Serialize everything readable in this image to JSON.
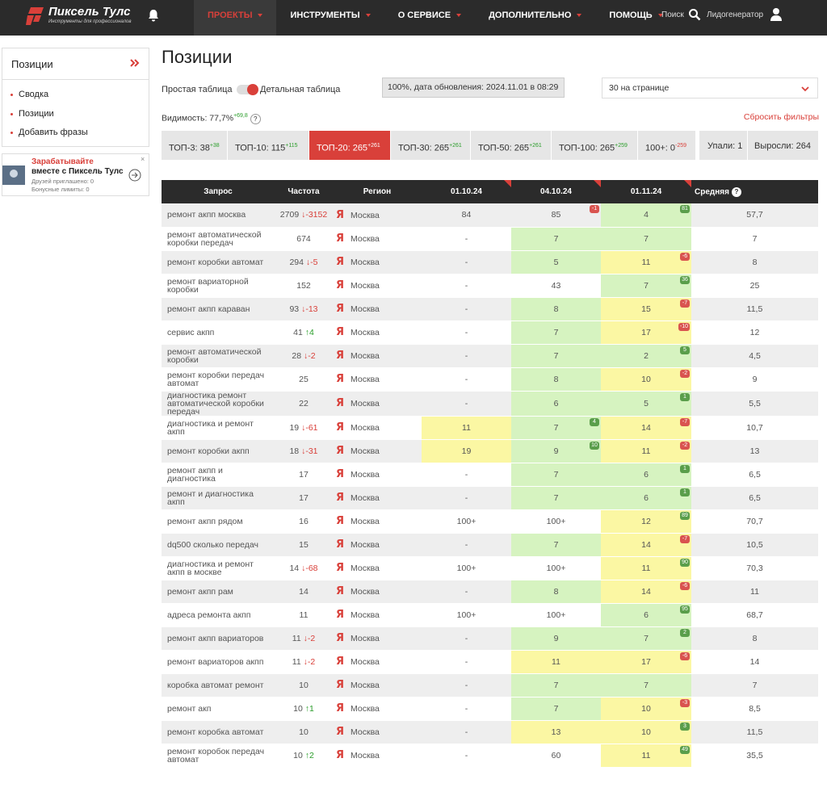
{
  "header": {
    "logo_title": "Пиксель Тулс",
    "logo_subtitle": "Инструменты для профессионалов",
    "nav": [
      "ПРОЕКТЫ",
      "ИНСТРУМЕНТЫ",
      "О СЕРВИСЕ",
      "ДОПОЛНИТЕЛЬНО",
      "ПОМОЩЬ"
    ],
    "active_nav": 0,
    "search": "Поиск",
    "user": "Лидогенератор"
  },
  "sidebar": {
    "title": "Позиции",
    "links": [
      "Сводка",
      "Позиции",
      "Добавить фразы"
    ],
    "promo": {
      "title": "Зарабатывайте",
      "subtitle": "вместе с Пиксель Тулс",
      "lines": [
        "Друзей приглашено: 0",
        "Бонусные лимиты: 0"
      ]
    }
  },
  "main": {
    "title": "Позиции",
    "toggle": [
      "Простая таблица",
      "Детальная таблица"
    ],
    "status": "100%, дата обновления: 2024.11.01 в 08:29",
    "per_page": "30 на странице",
    "visibility": "Видимость: 77,7%",
    "visibility_delta": "+69,8",
    "help": "?",
    "reset": "Сбросить фильтры",
    "tabs": [
      {
        "label": "ТОП-3: 38",
        "delta": "+38"
      },
      {
        "label": "ТОП-10: 115",
        "delta": "+115"
      },
      {
        "label": "ТОП-20: 265",
        "delta": "+261"
      },
      {
        "label": "ТОП-30: 265",
        "delta": "+261"
      },
      {
        "label": "ТОП-50: 265",
        "delta": "+261"
      },
      {
        "label": "ТОП-100: 265",
        "delta": "+259"
      },
      {
        "label": "100+: 0",
        "delta": "-259"
      }
    ],
    "active_tab": 2,
    "stats": [
      "Упали: 1",
      "Выросли: 264"
    ]
  },
  "table": {
    "columns": [
      "Запрос",
      "Частота",
      "Регион",
      "01.10.24",
      "04.10.24",
      "01.11.24",
      "Средняя"
    ],
    "engine_icon": "Я",
    "rows": [
      {
        "query": "ремонт акпп москва",
        "freq": "2709",
        "trend": "↓-3152",
        "region": "Москва",
        "cells": [
          {
            "v": "84",
            "bg": "white"
          },
          {
            "v": "85",
            "bg": "white",
            "badge": "-1"
          },
          {
            "v": "4",
            "bg": "green",
            "badge": "81"
          }
        ],
        "avg": "57,7"
      },
      {
        "query": "ремонт автоматической коробки передач",
        "freq": "674",
        "region": "Москва",
        "cells": [
          {
            "v": "-",
            "bg": "white"
          },
          {
            "v": "7",
            "bg": "green"
          },
          {
            "v": "7",
            "bg": "green"
          }
        ],
        "avg": "7"
      },
      {
        "query": "ремонт коробки автомат",
        "freq": "294",
        "trend": "↓-5",
        "region": "Москва",
        "cells": [
          {
            "v": "-",
            "bg": "white"
          },
          {
            "v": "5",
            "bg": "green"
          },
          {
            "v": "11",
            "bg": "yellow",
            "badge": "-6"
          }
        ],
        "avg": "8"
      },
      {
        "query": "ремонт вариаторной коробки",
        "freq": "152",
        "region": "Москва",
        "cells": [
          {
            "v": "-",
            "bg": "white"
          },
          {
            "v": "43",
            "bg": "white"
          },
          {
            "v": "7",
            "bg": "green",
            "badge": "36"
          }
        ],
        "avg": "25"
      },
      {
        "query": "ремонт акпп караван",
        "freq": "93",
        "trend": "↓-13",
        "region": "Москва",
        "cells": [
          {
            "v": "-",
            "bg": "white"
          },
          {
            "v": "8",
            "bg": "green"
          },
          {
            "v": "15",
            "bg": "yellow",
            "badge": "-7"
          }
        ],
        "avg": "11,5"
      },
      {
        "query": "сервис акпп",
        "freq": "41",
        "trend": "↑4",
        "region": "Москва",
        "cells": [
          {
            "v": "-",
            "bg": "white"
          },
          {
            "v": "7",
            "bg": "green"
          },
          {
            "v": "17",
            "bg": "yellow",
            "badge": "-10"
          }
        ],
        "avg": "12"
      },
      {
        "query": "ремонт автоматической коробки",
        "freq": "28",
        "trend": "↓-2",
        "region": "Москва",
        "cells": [
          {
            "v": "-",
            "bg": "white"
          },
          {
            "v": "7",
            "bg": "green"
          },
          {
            "v": "2",
            "bg": "green",
            "badge": "5"
          }
        ],
        "avg": "4,5"
      },
      {
        "query": "ремонт коробки передач автомат",
        "freq": "25",
        "region": "Москва",
        "cells": [
          {
            "v": "-",
            "bg": "white"
          },
          {
            "v": "8",
            "bg": "green"
          },
          {
            "v": "10",
            "bg": "yellow",
            "badge": "-2"
          }
        ],
        "avg": "9"
      },
      {
        "query": "диагностика ремонт автоматической коробки передач",
        "freq": "22",
        "region": "Москва",
        "cells": [
          {
            "v": "-",
            "bg": "white"
          },
          {
            "v": "6",
            "bg": "green"
          },
          {
            "v": "5",
            "bg": "green",
            "badge": "1"
          }
        ],
        "avg": "5,5"
      },
      {
        "query": "диагностика и ремонт акпп",
        "freq": "19",
        "trend": "↓-61",
        "region": "Москва",
        "cells": [
          {
            "v": "11",
            "bg": "yellow"
          },
          {
            "v": "7",
            "bg": "green",
            "badge": "4"
          },
          {
            "v": "14",
            "bg": "yellow",
            "badge": "-7"
          }
        ],
        "avg": "10,7"
      },
      {
        "query": "ремонт коробки акпп",
        "freq": "18",
        "trend": "↓-31",
        "region": "Москва",
        "cells": [
          {
            "v": "19",
            "bg": "yellow"
          },
          {
            "v": "9",
            "bg": "green",
            "badge": "10"
          },
          {
            "v": "11",
            "bg": "yellow",
            "badge": "-2"
          }
        ],
        "avg": "13"
      },
      {
        "query": "ремонт акпп и диагностика",
        "freq": "17",
        "region": "Москва",
        "cells": [
          {
            "v": "-",
            "bg": "white"
          },
          {
            "v": "7",
            "bg": "green"
          },
          {
            "v": "6",
            "bg": "green",
            "badge": "1"
          }
        ],
        "avg": "6,5"
      },
      {
        "query": "ремонт и диагностика акпп",
        "freq": "17",
        "region": "Москва",
        "cells": [
          {
            "v": "-",
            "bg": "white"
          },
          {
            "v": "7",
            "bg": "green"
          },
          {
            "v": "6",
            "bg": "green",
            "badge": "1"
          }
        ],
        "avg": "6,5"
      },
      {
        "query": "ремонт акпп рядом",
        "freq": "16",
        "region": "Москва",
        "cells": [
          {
            "v": "100+",
            "bg": "white"
          },
          {
            "v": "100+",
            "bg": "white"
          },
          {
            "v": "12",
            "bg": "yellow",
            "badge": "89"
          }
        ],
        "avg": "70,7"
      },
      {
        "query": "dq500 сколько передач",
        "freq": "15",
        "region": "Москва",
        "cells": [
          {
            "v": "-",
            "bg": "white"
          },
          {
            "v": "7",
            "bg": "green"
          },
          {
            "v": "14",
            "bg": "yellow",
            "badge": "-7"
          }
        ],
        "avg": "10,5"
      },
      {
        "query": "диагностика и ремонт акпп в москве",
        "freq": "14",
        "trend": "↓-68",
        "region": "Москва",
        "cells": [
          {
            "v": "100+",
            "bg": "white"
          },
          {
            "v": "100+",
            "bg": "white"
          },
          {
            "v": "11",
            "bg": "yellow",
            "badge": "90"
          }
        ],
        "avg": "70,3"
      },
      {
        "query": "ремонт акпп рам",
        "freq": "14",
        "region": "Москва",
        "cells": [
          {
            "v": "-",
            "bg": "white"
          },
          {
            "v": "8",
            "bg": "green"
          },
          {
            "v": "14",
            "bg": "yellow",
            "badge": "-6"
          }
        ],
        "avg": "11"
      },
      {
        "query": "адреса ремонта акпп",
        "freq": "11",
        "region": "Москва",
        "cells": [
          {
            "v": "100+",
            "bg": "white"
          },
          {
            "v": "100+",
            "bg": "white"
          },
          {
            "v": "6",
            "bg": "green",
            "badge": "95"
          }
        ],
        "avg": "68,7"
      },
      {
        "query": "ремонт акпп вариаторов",
        "freq": "11",
        "trend": "↓-2",
        "region": "Москва",
        "cells": [
          {
            "v": "-",
            "bg": "white"
          },
          {
            "v": "9",
            "bg": "green"
          },
          {
            "v": "7",
            "bg": "green",
            "badge": "2"
          }
        ],
        "avg": "8"
      },
      {
        "query": "ремонт вариаторов акпп",
        "freq": "11",
        "trend": "↓-2",
        "region": "Москва",
        "cells": [
          {
            "v": "-",
            "bg": "white"
          },
          {
            "v": "11",
            "bg": "yellow"
          },
          {
            "v": "17",
            "bg": "yellow",
            "badge": "-6"
          }
        ],
        "avg": "14"
      },
      {
        "query": "коробка автомат ремонт",
        "freq": "10",
        "region": "Москва",
        "cells": [
          {
            "v": "-",
            "bg": "white"
          },
          {
            "v": "7",
            "bg": "green"
          },
          {
            "v": "7",
            "bg": "green"
          }
        ],
        "avg": "7"
      },
      {
        "query": "ремонт акп",
        "freq": "10",
        "trend": "↑1",
        "region": "Москва",
        "cells": [
          {
            "v": "-",
            "bg": "white"
          },
          {
            "v": "7",
            "bg": "green"
          },
          {
            "v": "10",
            "bg": "yellow",
            "badge": "-3"
          }
        ],
        "avg": "8,5"
      },
      {
        "query": "ремонт коробка автомат",
        "freq": "10",
        "region": "Москва",
        "cells": [
          {
            "v": "-",
            "bg": "white"
          },
          {
            "v": "13",
            "bg": "yellow"
          },
          {
            "v": "10",
            "bg": "yellow",
            "badge": "3"
          }
        ],
        "avg": "11,5"
      },
      {
        "query": "ремонт коробок передач автомат",
        "freq": "10",
        "trend": "↑2",
        "region": "Москва",
        "cells": [
          {
            "v": "-",
            "bg": "white"
          },
          {
            "v": "60",
            "bg": "white"
          },
          {
            "v": "11",
            "bg": "yellow",
            "badge": "49"
          }
        ],
        "avg": "35,5"
      }
    ]
  }
}
